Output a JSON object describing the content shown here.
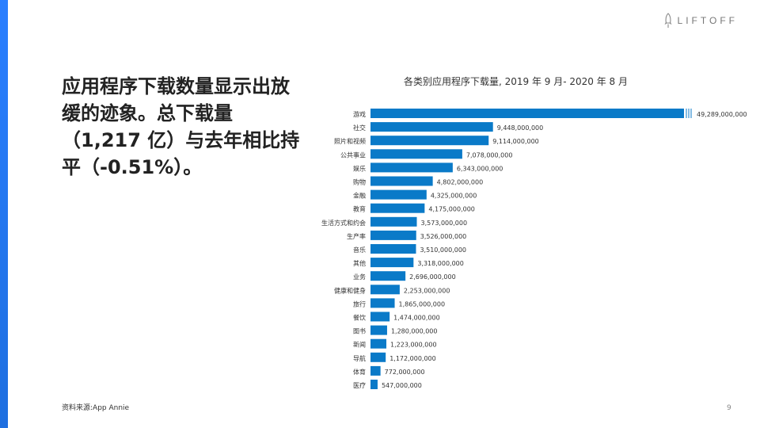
{
  "branding": {
    "logo_text": "LIFTOFF"
  },
  "headline": "应用程序下载数量显示出放缓的迹象。总下载量（1,217 亿）与去年相比持平（-0.51%）。",
  "source": "资料来源:App Annie",
  "page_number": "9",
  "colors": {
    "bar": "#0a7ac8",
    "label": "#333333",
    "value": "#333333",
    "accent": "#1e6fe0"
  },
  "chart_data": {
    "type": "bar",
    "orientation": "horizontal",
    "title": "各类别应用程序下载量, 2019 年 9 月- 2020 年 8 月",
    "xlabel": "",
    "ylabel": "",
    "axis_break": true,
    "categories": [
      "游戏",
      "社交",
      "照片和视频",
      "公共事业",
      "娱乐",
      "购物",
      "金融",
      "教育",
      "生活方式和约会",
      "生产率",
      "音乐",
      "其他",
      "业务",
      "健康和健身",
      "旅行",
      "餐饮",
      "图书",
      "新闻",
      "导航",
      "体育",
      "医疗"
    ],
    "values": [
      49289000000,
      9448000000,
      9114000000,
      7078000000,
      6343000000,
      4802000000,
      4325000000,
      4175000000,
      3573000000,
      3526000000,
      3510000000,
      3318000000,
      2696000000,
      2253000000,
      1865000000,
      1474000000,
      1280000000,
      1223000000,
      1172000000,
      772000000,
      547000000
    ],
    "value_labels": [
      "49,289,000,000",
      "9,448,000,000",
      "9,114,000,000",
      "7,078,000,000",
      "6,343,000,000",
      "4,802,000,000",
      "4,325,000,000",
      "4,175,000,000",
      "3,573,000,000",
      "3,526,000,000",
      "3,510,000,000",
      "3,318,000,000",
      "2,696,000,000",
      "2,253,000,000",
      "1,865,000,000",
      "1,474,000,000",
      "1,280,000,000",
      "1,223,000,000",
      "1,172,000,000",
      "772,000,000",
      "547,000,000"
    ],
    "truncated_axis_max": 24000000000
  }
}
